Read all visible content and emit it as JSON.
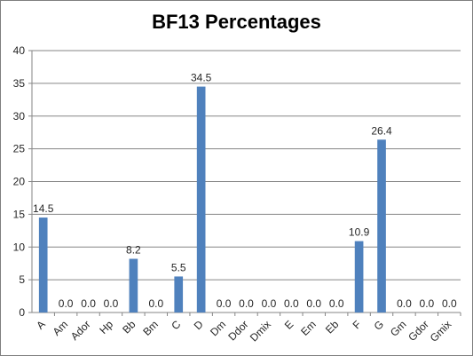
{
  "chart_data": {
    "type": "bar",
    "title": "BF13 Percentages",
    "categories": [
      "A",
      "Am",
      "Ador",
      "Hp",
      "Bb",
      "Bm",
      "C",
      "D",
      "Dm",
      "Ddor",
      "Dmix",
      "E",
      "Em",
      "Eb",
      "F",
      "G",
      "Gm",
      "Gdor",
      "Gmix"
    ],
    "values": [
      14.5,
      0.0,
      0.0,
      0.0,
      8.2,
      0.0,
      5.5,
      34.5,
      0.0,
      0.0,
      0.0,
      0.0,
      0.0,
      0.0,
      10.9,
      26.4,
      0.0,
      0.0,
      0.0
    ],
    "data_labels": [
      "14.5",
      "0.0",
      "0.0",
      "0.0",
      "8.2",
      "0.0",
      "5.5",
      "34.5",
      "0.0",
      "0.0",
      "0.0",
      "0.0",
      "0.0",
      "0.0",
      "10.9",
      "26.4",
      "0.0",
      "0.0",
      "0.0"
    ],
    "ylim": [
      0,
      40
    ],
    "yticks": [
      0,
      5,
      10,
      15,
      20,
      25,
      30,
      35,
      40
    ],
    "grid": true,
    "legend": "none",
    "bar_color": "#4f81bd",
    "grid_color": "#868686"
  }
}
